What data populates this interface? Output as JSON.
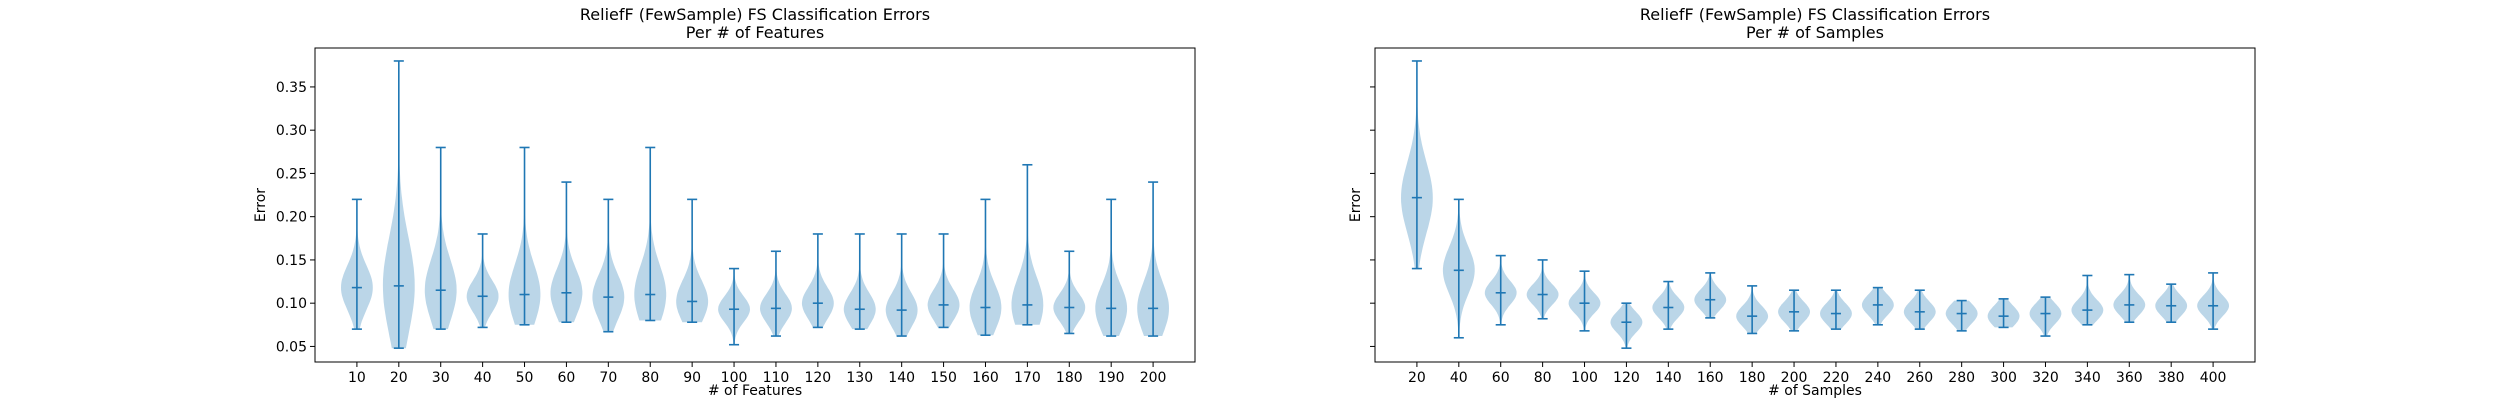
{
  "chart_data": [
    {
      "type": "violin",
      "title": "ReliefF (FewSample) FS Classification Errors",
      "subtitle": "Per # of Features",
      "xlabel": "# of Features",
      "ylabel": "Error",
      "ylim": [
        0.032,
        0.395
      ],
      "yticks": [
        "0.05",
        "0.10",
        "0.15",
        "0.20",
        "0.25",
        "0.30",
        "0.35"
      ],
      "show_ytick_labels": true,
      "color": "#1f77b4",
      "categories": [
        "10",
        "20",
        "30",
        "40",
        "50",
        "60",
        "70",
        "80",
        "90",
        "100",
        "110",
        "120",
        "130",
        "140",
        "150",
        "160",
        "170",
        "180",
        "190",
        "200"
      ],
      "min": [
        0.07,
        0.048,
        0.07,
        0.072,
        0.075,
        0.078,
        0.067,
        0.08,
        0.078,
        0.052,
        0.062,
        0.072,
        0.07,
        0.062,
        0.072,
        0.063,
        0.075,
        0.065,
        0.062,
        0.062
      ],
      "median": [
        0.118,
        0.12,
        0.115,
        0.108,
        0.11,
        0.112,
        0.107,
        0.11,
        0.102,
        0.093,
        0.094,
        0.1,
        0.093,
        0.092,
        0.098,
        0.095,
        0.098,
        0.095,
        0.094,
        0.094
      ],
      "max": [
        0.22,
        0.38,
        0.28,
        0.18,
        0.28,
        0.24,
        0.22,
        0.28,
        0.22,
        0.14,
        0.16,
        0.18,
        0.18,
        0.18,
        0.18,
        0.22,
        0.26,
        0.16,
        0.22,
        0.24
      ]
    },
    {
      "type": "violin",
      "title": "ReliefF (FewSample) FS Classification Errors",
      "subtitle": "Per # of Samples",
      "xlabel": "# of Samples",
      "ylabel": "Error",
      "ylim": [
        0.032,
        0.395
      ],
      "yticks": [
        "0.05",
        "0.10",
        "0.15",
        "0.20",
        "0.25",
        "0.30",
        "0.35"
      ],
      "show_ytick_labels": false,
      "color": "#1f77b4",
      "categories": [
        "20",
        "40",
        "60",
        "80",
        "100",
        "120",
        "140",
        "160",
        "180",
        "200",
        "220",
        "240",
        "260",
        "280",
        "300",
        "320",
        "340",
        "360",
        "380",
        "400"
      ],
      "min": [
        0.14,
        0.06,
        0.075,
        0.082,
        0.068,
        0.048,
        0.07,
        0.083,
        0.065,
        0.068,
        0.07,
        0.075,
        0.07,
        0.068,
        0.072,
        0.062,
        0.075,
        0.078,
        0.078,
        0.07
      ],
      "median": [
        0.222,
        0.138,
        0.112,
        0.11,
        0.1,
        0.078,
        0.095,
        0.104,
        0.085,
        0.09,
        0.088,
        0.098,
        0.09,
        0.088,
        0.085,
        0.088,
        0.092,
        0.098,
        0.097,
        0.097
      ],
      "max": [
        0.38,
        0.22,
        0.155,
        0.15,
        0.137,
        0.1,
        0.125,
        0.135,
        0.12,
        0.115,
        0.115,
        0.118,
        0.115,
        0.103,
        0.105,
        0.107,
        0.132,
        0.133,
        0.122,
        0.135
      ]
    }
  ]
}
